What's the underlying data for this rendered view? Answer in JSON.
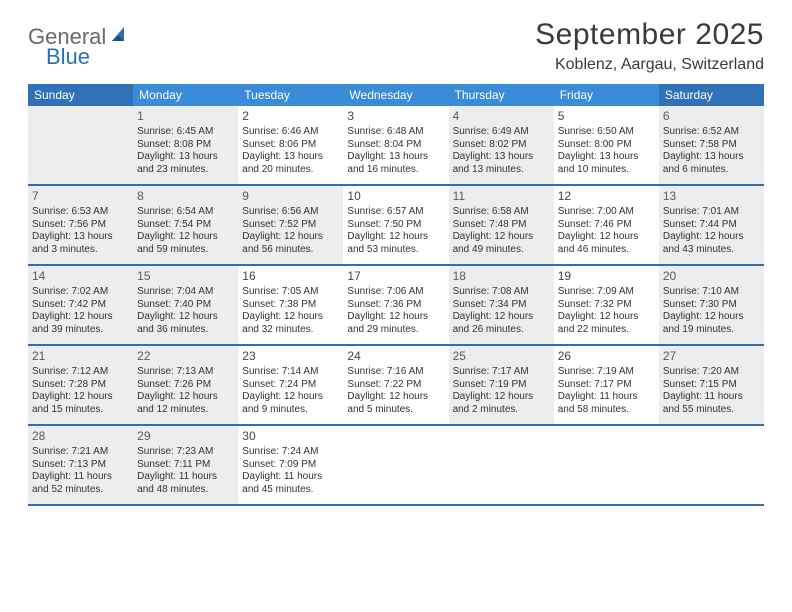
{
  "logo": {
    "text1": "General",
    "text2": "Blue"
  },
  "title": "September 2025",
  "location": "Koblenz, Aargau, Switzerland",
  "colors": {
    "header_bg": "#3a8bd8",
    "header_weekend_bg": "#2f72b8",
    "row_border": "#2f6fb3",
    "shaded_bg": "#ededed",
    "page_bg": "#ffffff",
    "text": "#333333"
  },
  "weekdays": [
    "Sunday",
    "Monday",
    "Tuesday",
    "Wednesday",
    "Thursday",
    "Friday",
    "Saturday"
  ],
  "weeks": [
    [
      {
        "blank": true,
        "shaded": true
      },
      {
        "num": "1",
        "shaded": true,
        "sunrise": "Sunrise: 6:45 AM",
        "sunset": "Sunset: 8:08 PM",
        "dl1": "Daylight: 13 hours",
        "dl2": "and 23 minutes."
      },
      {
        "num": "2",
        "shaded": false,
        "sunrise": "Sunrise: 6:46 AM",
        "sunset": "Sunset: 8:06 PM",
        "dl1": "Daylight: 13 hours",
        "dl2": "and 20 minutes."
      },
      {
        "num": "3",
        "shaded": false,
        "sunrise": "Sunrise: 6:48 AM",
        "sunset": "Sunset: 8:04 PM",
        "dl1": "Daylight: 13 hours",
        "dl2": "and 16 minutes."
      },
      {
        "num": "4",
        "shaded": true,
        "sunrise": "Sunrise: 6:49 AM",
        "sunset": "Sunset: 8:02 PM",
        "dl1": "Daylight: 13 hours",
        "dl2": "and 13 minutes."
      },
      {
        "num": "5",
        "shaded": false,
        "sunrise": "Sunrise: 6:50 AM",
        "sunset": "Sunset: 8:00 PM",
        "dl1": "Daylight: 13 hours",
        "dl2": "and 10 minutes."
      },
      {
        "num": "6",
        "shaded": true,
        "sunrise": "Sunrise: 6:52 AM",
        "sunset": "Sunset: 7:58 PM",
        "dl1": "Daylight: 13 hours",
        "dl2": "and 6 minutes."
      }
    ],
    [
      {
        "num": "7",
        "shaded": true,
        "sunrise": "Sunrise: 6:53 AM",
        "sunset": "Sunset: 7:56 PM",
        "dl1": "Daylight: 13 hours",
        "dl2": "and 3 minutes."
      },
      {
        "num": "8",
        "shaded": true,
        "sunrise": "Sunrise: 6:54 AM",
        "sunset": "Sunset: 7:54 PM",
        "dl1": "Daylight: 12 hours",
        "dl2": "and 59 minutes."
      },
      {
        "num": "9",
        "shaded": true,
        "sunrise": "Sunrise: 6:56 AM",
        "sunset": "Sunset: 7:52 PM",
        "dl1": "Daylight: 12 hours",
        "dl2": "and 56 minutes."
      },
      {
        "num": "10",
        "shaded": false,
        "sunrise": "Sunrise: 6:57 AM",
        "sunset": "Sunset: 7:50 PM",
        "dl1": "Daylight: 12 hours",
        "dl2": "and 53 minutes."
      },
      {
        "num": "11",
        "shaded": true,
        "sunrise": "Sunrise: 6:58 AM",
        "sunset": "Sunset: 7:48 PM",
        "dl1": "Daylight: 12 hours",
        "dl2": "and 49 minutes."
      },
      {
        "num": "12",
        "shaded": false,
        "sunrise": "Sunrise: 7:00 AM",
        "sunset": "Sunset: 7:46 PM",
        "dl1": "Daylight: 12 hours",
        "dl2": "and 46 minutes."
      },
      {
        "num": "13",
        "shaded": true,
        "sunrise": "Sunrise: 7:01 AM",
        "sunset": "Sunset: 7:44 PM",
        "dl1": "Daylight: 12 hours",
        "dl2": "and 43 minutes."
      }
    ],
    [
      {
        "num": "14",
        "shaded": true,
        "sunrise": "Sunrise: 7:02 AM",
        "sunset": "Sunset: 7:42 PM",
        "dl1": "Daylight: 12 hours",
        "dl2": "and 39 minutes."
      },
      {
        "num": "15",
        "shaded": true,
        "sunrise": "Sunrise: 7:04 AM",
        "sunset": "Sunset: 7:40 PM",
        "dl1": "Daylight: 12 hours",
        "dl2": "and 36 minutes."
      },
      {
        "num": "16",
        "shaded": false,
        "sunrise": "Sunrise: 7:05 AM",
        "sunset": "Sunset: 7:38 PM",
        "dl1": "Daylight: 12 hours",
        "dl2": "and 32 minutes."
      },
      {
        "num": "17",
        "shaded": false,
        "sunrise": "Sunrise: 7:06 AM",
        "sunset": "Sunset: 7:36 PM",
        "dl1": "Daylight: 12 hours",
        "dl2": "and 29 minutes."
      },
      {
        "num": "18",
        "shaded": true,
        "sunrise": "Sunrise: 7:08 AM",
        "sunset": "Sunset: 7:34 PM",
        "dl1": "Daylight: 12 hours",
        "dl2": "and 26 minutes."
      },
      {
        "num": "19",
        "shaded": false,
        "sunrise": "Sunrise: 7:09 AM",
        "sunset": "Sunset: 7:32 PM",
        "dl1": "Daylight: 12 hours",
        "dl2": "and 22 minutes."
      },
      {
        "num": "20",
        "shaded": true,
        "sunrise": "Sunrise: 7:10 AM",
        "sunset": "Sunset: 7:30 PM",
        "dl1": "Daylight: 12 hours",
        "dl2": "and 19 minutes."
      }
    ],
    [
      {
        "num": "21",
        "shaded": true,
        "sunrise": "Sunrise: 7:12 AM",
        "sunset": "Sunset: 7:28 PM",
        "dl1": "Daylight: 12 hours",
        "dl2": "and 15 minutes."
      },
      {
        "num": "22",
        "shaded": true,
        "sunrise": "Sunrise: 7:13 AM",
        "sunset": "Sunset: 7:26 PM",
        "dl1": "Daylight: 12 hours",
        "dl2": "and 12 minutes."
      },
      {
        "num": "23",
        "shaded": false,
        "sunrise": "Sunrise: 7:14 AM",
        "sunset": "Sunset: 7:24 PM",
        "dl1": "Daylight: 12 hours",
        "dl2": "and 9 minutes."
      },
      {
        "num": "24",
        "shaded": false,
        "sunrise": "Sunrise: 7:16 AM",
        "sunset": "Sunset: 7:22 PM",
        "dl1": "Daylight: 12 hours",
        "dl2": "and 5 minutes."
      },
      {
        "num": "25",
        "shaded": true,
        "sunrise": "Sunrise: 7:17 AM",
        "sunset": "Sunset: 7:19 PM",
        "dl1": "Daylight: 12 hours",
        "dl2": "and 2 minutes."
      },
      {
        "num": "26",
        "shaded": false,
        "sunrise": "Sunrise: 7:19 AM",
        "sunset": "Sunset: 7:17 PM",
        "dl1": "Daylight: 11 hours",
        "dl2": "and 58 minutes."
      },
      {
        "num": "27",
        "shaded": true,
        "sunrise": "Sunrise: 7:20 AM",
        "sunset": "Sunset: 7:15 PM",
        "dl1": "Daylight: 11 hours",
        "dl2": "and 55 minutes."
      }
    ],
    [
      {
        "num": "28",
        "shaded": true,
        "sunrise": "Sunrise: 7:21 AM",
        "sunset": "Sunset: 7:13 PM",
        "dl1": "Daylight: 11 hours",
        "dl2": "and 52 minutes."
      },
      {
        "num": "29",
        "shaded": true,
        "sunrise": "Sunrise: 7:23 AM",
        "sunset": "Sunset: 7:11 PM",
        "dl1": "Daylight: 11 hours",
        "dl2": "and 48 minutes."
      },
      {
        "num": "30",
        "shaded": false,
        "sunrise": "Sunrise: 7:24 AM",
        "sunset": "Sunset: 7:09 PM",
        "dl1": "Daylight: 11 hours",
        "dl2": "and 45 minutes."
      },
      {
        "blank": true,
        "shaded": false
      },
      {
        "blank": true,
        "shaded": false
      },
      {
        "blank": true,
        "shaded": false
      },
      {
        "blank": true,
        "shaded": false
      }
    ]
  ]
}
